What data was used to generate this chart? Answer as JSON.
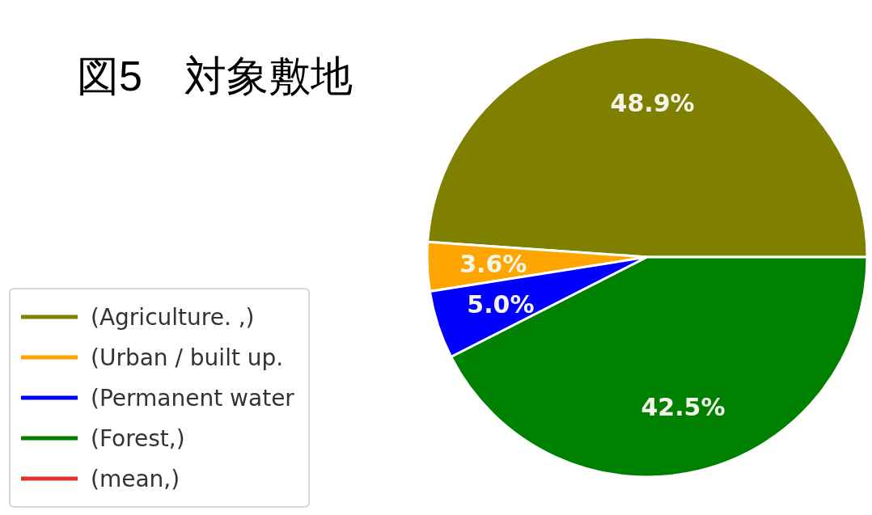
{
  "chart_data": {
    "type": "pie",
    "title": "図5　対象敷地",
    "categories": [
      "(Agriculture.  ,)",
      "(Urban / built up.",
      "(Permanent water",
      "(Forest,)",
      "(mean,)"
    ],
    "values": [
      48.9,
      3.6,
      5.0,
      42.5,
      null
    ],
    "colors": [
      "#808000",
      "#ffa500",
      "#0000ff",
      "#008000",
      "#e03030"
    ],
    "value_labels": [
      "48.9%",
      "3.6%",
      "5.0%",
      "42.5%",
      null
    ],
    "legend": "bottom left"
  }
}
